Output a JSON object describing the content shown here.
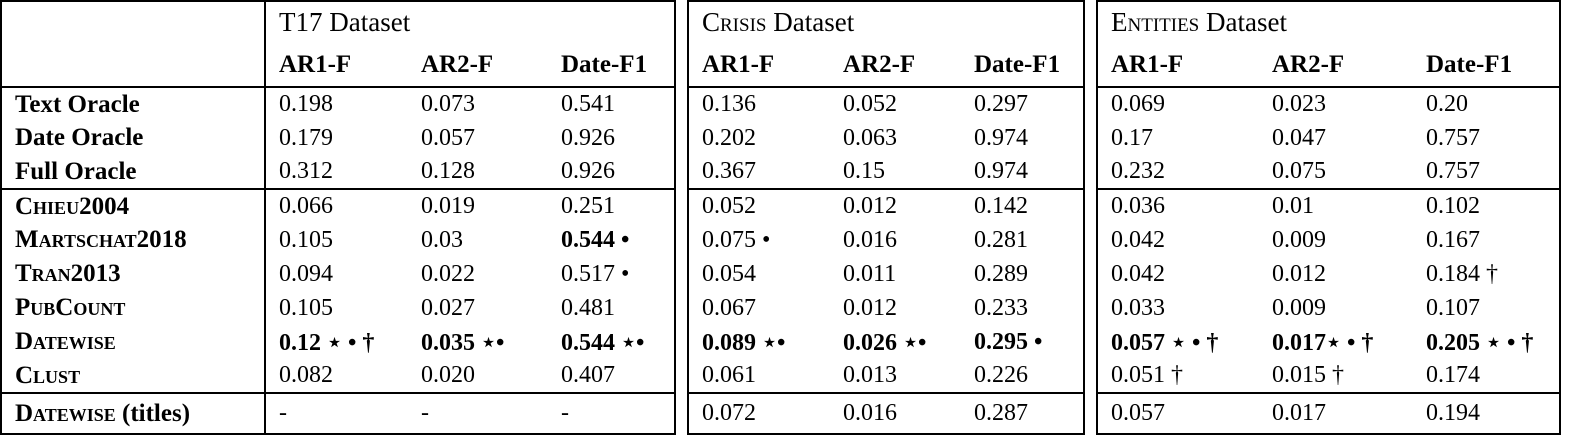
{
  "colors": {
    "text": "#000000",
    "background": "#ffffff",
    "border": "#000000"
  },
  "symbols": {
    "star": "⋆",
    "bullet": "•",
    "dagger": "†"
  },
  "table": {
    "header": {
      "corner": "",
      "sections": [
        {
          "name_sc": "T17",
          "name_rest": " Dataset",
          "columns": [
            "AR1-F",
            "AR2-F",
            "Date-F1"
          ]
        },
        {
          "name_sc": "Crisis",
          "name_rest": " Dataset",
          "columns": [
            "AR1-F",
            "AR2-F",
            "Date-F1"
          ]
        },
        {
          "name_sc": "Entities",
          "name_rest": " Dataset",
          "columns": [
            "AR1-F",
            "AR2-F",
            "Date-F1"
          ]
        }
      ]
    },
    "rows": [
      {
        "label_sc": "",
        "label_rest": "Text Oracle",
        "sep": false,
        "cells": [
          {
            "t": "0.198"
          },
          {
            "t": "0.073"
          },
          {
            "t": "0.541"
          },
          {
            "t": "0.136"
          },
          {
            "t": "0.052"
          },
          {
            "t": "0.297"
          },
          {
            "t": "0.069"
          },
          {
            "t": "0.023"
          },
          {
            "t": "0.20"
          }
        ]
      },
      {
        "label_sc": "",
        "label_rest": "Date Oracle",
        "sep": false,
        "cells": [
          {
            "t": "0.179"
          },
          {
            "t": "0.057"
          },
          {
            "t": "0.926"
          },
          {
            "t": "0.202"
          },
          {
            "t": "0.063"
          },
          {
            "t": "0.974"
          },
          {
            "t": "0.17"
          },
          {
            "t": "0.047"
          },
          {
            "t": "0.757"
          }
        ]
      },
      {
        "label_sc": "",
        "label_rest": "Full Oracle",
        "sep": false,
        "cells": [
          {
            "t": "0.312"
          },
          {
            "t": "0.128"
          },
          {
            "t": "0.926"
          },
          {
            "t": "0.367"
          },
          {
            "t": "0.15"
          },
          {
            "t": "0.974"
          },
          {
            "t": "0.232"
          },
          {
            "t": "0.075"
          },
          {
            "t": "0.757"
          }
        ]
      },
      {
        "label_sc": "Chieu2004",
        "label_rest": "",
        "sep": true,
        "cells": [
          {
            "t": "0.066"
          },
          {
            "t": "0.019"
          },
          {
            "t": "0.251"
          },
          {
            "t": "0.052"
          },
          {
            "t": "0.012"
          },
          {
            "t": "0.142"
          },
          {
            "t": "0.036"
          },
          {
            "t": "0.01"
          },
          {
            "t": "0.102"
          }
        ]
      },
      {
        "label_sc": "Martschat2018",
        "label_rest": "",
        "sep": false,
        "cells": [
          {
            "t": "0.105"
          },
          {
            "t": "0.03"
          },
          {
            "t": "0.544 •",
            "b": true
          },
          {
            "t": "0.075 •"
          },
          {
            "t": "0.016"
          },
          {
            "t": "0.281"
          },
          {
            "t": "0.042"
          },
          {
            "t": "0.009"
          },
          {
            "t": "0.167"
          }
        ]
      },
      {
        "label_sc": "Tran2013",
        "label_rest": "",
        "sep": false,
        "cells": [
          {
            "t": "0.094"
          },
          {
            "t": "0.022"
          },
          {
            "t": "0.517 •"
          },
          {
            "t": "0.054"
          },
          {
            "t": "0.011"
          },
          {
            "t": "0.289"
          },
          {
            "t": "0.042"
          },
          {
            "t": "0.012"
          },
          {
            "t": "0.184 †"
          }
        ]
      },
      {
        "label_sc": "PubCount",
        "label_rest": "",
        "sep": false,
        "cells": [
          {
            "t": "0.105"
          },
          {
            "t": "0.027"
          },
          {
            "t": "0.481"
          },
          {
            "t": "0.067"
          },
          {
            "t": "0.012"
          },
          {
            "t": "0.233"
          },
          {
            "t": "0.033"
          },
          {
            "t": "0.009"
          },
          {
            "t": "0.107"
          }
        ]
      },
      {
        "label_sc": "Datewise",
        "label_rest": "",
        "sep": false,
        "cells": [
          {
            "t": "0.12 ⋆ • †",
            "b": true
          },
          {
            "t": "0.035 ⋆•",
            "b": true
          },
          {
            "t": "0.544 ⋆•",
            "b": true
          },
          {
            "t": "0.089 ⋆•",
            "b": true
          },
          {
            "t": "0.026 ⋆•",
            "b": true
          },
          {
            "t": "0.295 •",
            "b": true
          },
          {
            "t": "0.057 ⋆ • †",
            "b": true
          },
          {
            "t": "0.017⋆ • †",
            "b": true
          },
          {
            "t": "0.205 ⋆ • †",
            "b": true
          }
        ]
      },
      {
        "label_sc": "Clust",
        "label_rest": "",
        "sep": false,
        "cells": [
          {
            "t": "0.082"
          },
          {
            "t": "0.020"
          },
          {
            "t": "0.407"
          },
          {
            "t": "0.061"
          },
          {
            "t": "0.013"
          },
          {
            "t": "0.226"
          },
          {
            "t": "0.051 †"
          },
          {
            "t": "0.015 †"
          },
          {
            "t": "0.174"
          }
        ]
      },
      {
        "label_sc": "Datewise",
        "label_rest": " (titles)",
        "sep": true,
        "cells": [
          {
            "t": "-"
          },
          {
            "t": "-"
          },
          {
            "t": "-"
          },
          {
            "t": "0.072"
          },
          {
            "t": "0.016"
          },
          {
            "t": "0.287"
          },
          {
            "t": "0.057"
          },
          {
            "t": "0.017"
          },
          {
            "t": "0.194"
          }
        ]
      }
    ]
  }
}
